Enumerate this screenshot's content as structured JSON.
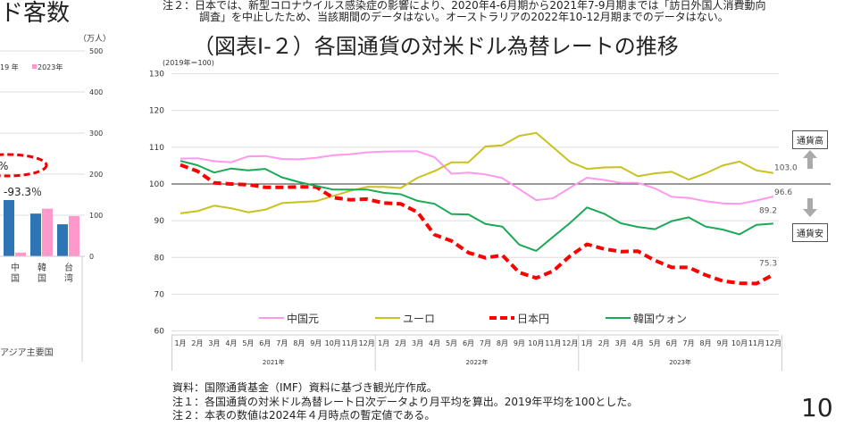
{
  "left_panel": {
    "title": "ド客数",
    "unit": "（万人）",
    "annotation_circled": "%",
    "annotation": "-93.3％",
    "footer": "アジア主要国"
  },
  "top_note": [
    "注２：日本では、新型コロナウイルス感染症の影響により、2020年4-6月期から2021年7-9月期までは「訪日外国人消費動向",
    "調査」を中止したため、当該期間のデータはない。オーストラリアの2022年10-12月期までのデータはない。"
  ],
  "main_title": "（図表Ⅰ-２）各国通貨の対米ドル為替レートの推移",
  "badges": {
    "up": "通貨高",
    "down": "通貨安"
  },
  "notes": [
    "資料：国際通貨基金（IMF）資料に基づき観光庁作成。",
    "注１：各国通貨の対米ドル為替レート日次データより月平均を算出。2019年平均を100とした。",
    "注２：本表の数値は2024年４月時点の暫定値である。"
  ],
  "page_number": "10",
  "chart_data": [
    {
      "type": "bar",
      "unit": "（万人）",
      "categories": [
        "中国",
        "韓国",
        "台湾"
      ],
      "series": [
        {
          "name": "2019 年",
          "color": "#2e75b6",
          "values": [
            137,
            104,
            78
          ]
        },
        {
          "name": "2023年",
          "color": "#ff99cc",
          "values": [
            9,
            116,
            98
          ]
        }
      ],
      "ylim": [
        0,
        500
      ],
      "yticks": [
        0,
        100,
        200,
        300,
        400,
        500
      ],
      "legend_partial": "19 年",
      "grid": true
    },
    {
      "type": "line",
      "title": "（図表Ⅰ-２）各国通貨の対米ドル為替レートの推移",
      "ylabel": "(2019年＝100)",
      "ylim": [
        60,
        130
      ],
      "yticks": [
        60,
        70,
        80,
        90,
        100,
        110,
        120,
        130
      ],
      "grid": true,
      "reference_line": 100,
      "years": [
        "2021年",
        "2022年",
        "2023年"
      ],
      "months": [
        "1月",
        "2月",
        "3月",
        "4月",
        "5月",
        "6月",
        "7月",
        "8月",
        "9月",
        "10月",
        "11月",
        "12月"
      ],
      "legend_position": "bottom",
      "series": [
        {
          "name": "中国元",
          "color": "#ff99ee",
          "style": "solid",
          "end_label": "96.6",
          "values": [
            106.9,
            107.0,
            106.2,
            105.9,
            107.5,
            107.6,
            106.8,
            106.7,
            107.1,
            107.8,
            108.1,
            108.6,
            108.8,
            108.9,
            108.9,
            107.3,
            102.8,
            103.1,
            102.6,
            101.6,
            98.6,
            95.6,
            96.1,
            99.0,
            101.7,
            101.1,
            100.3,
            100.3,
            98.8,
            96.5,
            96.2,
            95.3,
            94.7,
            94.6,
            95.5,
            96.6
          ]
        },
        {
          "name": "ユーロ",
          "color": "#c8c21e",
          "style": "solid",
          "end_label": "103.0",
          "values": [
            92.0,
            92.6,
            94.1,
            93.4,
            92.3,
            93.0,
            94.8,
            95.1,
            95.3,
            96.7,
            98.1,
            99.2,
            99.2,
            98.9,
            101.7,
            103.5,
            105.9,
            105.9,
            110.2,
            110.5,
            113.1,
            113.9,
            110.0,
            106.0,
            104.1,
            104.5,
            104.6,
            102.1,
            102.9,
            103.3,
            101.2,
            102.9,
            105.0,
            106.1,
            103.7,
            103.0
          ]
        },
        {
          "name": "日本円",
          "color": "#ff0000",
          "style": "dashed",
          "end_label": "75.3",
          "values": [
            105.2,
            103.5,
            100.3,
            100.0,
            99.8,
            99.1,
            99.1,
            99.2,
            99.2,
            96.3,
            95.7,
            95.9,
            94.8,
            94.6,
            92.3,
            86.2,
            84.5,
            81.3,
            79.9,
            80.6,
            75.9,
            74.4,
            76.3,
            80.4,
            83.6,
            82.3,
            81.6,
            81.7,
            79.2,
            77.3,
            77.3,
            75.2,
            73.6,
            73.0,
            72.9,
            75.3
          ]
        },
        {
          "name": "韓国ウォン",
          "color": "#1aaa55",
          "style": "solid",
          "end_label": "89.2",
          "values": [
            106.3,
            105.1,
            103.1,
            104.2,
            103.7,
            104.1,
            101.8,
            100.5,
            99.5,
            98.5,
            98.5,
            98.5,
            97.6,
            97.2,
            95.4,
            94.6,
            91.8,
            91.7,
            89.1,
            88.4,
            83.5,
            81.8,
            85.6,
            89.4,
            93.6,
            91.9,
            89.3,
            88.3,
            87.7,
            89.9,
            90.9,
            88.4,
            87.6,
            86.3,
            88.9,
            89.2
          ]
        }
      ]
    }
  ]
}
